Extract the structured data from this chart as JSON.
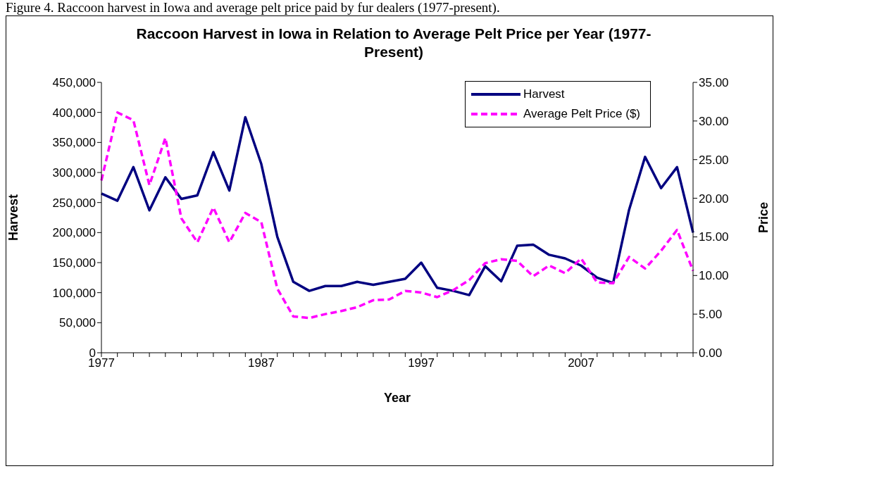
{
  "chart_data": {
    "type": "line",
    "title": "Raccoon Harvest in Iowa in Relation to Average Pelt Price per Year (1977-Present)",
    "xlabel": "Year",
    "ylabel": "Harvest",
    "y2label": "Price",
    "annotations": [
      "Figure 4. Raccoon harvest in Iowa and average pelt price paid by fur dealers (1977-present)."
    ],
    "categories": [
      "1977",
      null,
      null,
      null,
      null,
      null,
      null,
      null,
      null,
      null,
      "1987",
      null,
      null,
      null,
      null,
      null,
      null,
      null,
      null,
      null,
      "1997",
      null,
      null,
      null,
      null,
      null,
      null,
      null,
      null,
      null,
      "2007",
      null,
      null,
      null,
      null,
      null,
      null,
      null
    ],
    "series": [
      {
        "name": "Harvest",
        "color": "#000080",
        "line_style": "solid",
        "values": [
          265000,
          253000,
          309000,
          237000,
          292000,
          256000,
          262000,
          334000,
          270000,
          392000,
          314000,
          193000,
          118000,
          103000,
          111000,
          111000,
          118000,
          113000,
          118000,
          123000,
          150000,
          108000,
          103000,
          96000,
          144000,
          119000,
          178000,
          180000,
          163000,
          157000,
          145000,
          125000,
          116000,
          238000,
          326000,
          274000,
          309000,
          200000
        ]
      },
      {
        "name": "Average Pelt Price ($)",
        "color": "#ff00ff",
        "line_style": "dashed",
        "axis": "y2",
        "values": [
          22.3,
          31.1,
          30.1,
          21.7,
          27.8,
          17.4,
          14.3,
          18.8,
          14.3,
          18.1,
          16.9,
          8.3,
          4.7,
          4.5,
          5.0,
          5.4,
          5.9,
          6.8,
          6.9,
          8.0,
          7.8,
          7.2,
          8.1,
          9.4,
          11.6,
          12.1,
          11.9,
          9.9,
          11.3,
          10.3,
          12.2,
          9.1,
          9.0,
          12.4,
          10.9,
          13.2,
          15.9,
          10.6
        ]
      }
    ],
    "ylim": [
      0,
      450000
    ],
    "yticks": [
      {
        "value": 0,
        "label": "0"
      },
      {
        "value": 50000,
        "label": "50,000"
      },
      {
        "value": 100000,
        "label": "100,000"
      },
      {
        "value": 150000,
        "label": "150,000"
      },
      {
        "value": 200000,
        "label": "200,000"
      },
      {
        "value": 250000,
        "label": "250,000"
      },
      {
        "value": 300000,
        "label": "300,000"
      },
      {
        "value": 350000,
        "label": "350,000"
      },
      {
        "value": 400000,
        "label": "400,000"
      },
      {
        "value": 450000,
        "label": "450,000"
      }
    ],
    "y2lim": [
      0,
      35
    ],
    "y2ticks": [
      {
        "value": 0,
        "label": "0.00"
      },
      {
        "value": 5,
        "label": "5.00"
      },
      {
        "value": 10,
        "label": "10.00"
      },
      {
        "value": 15,
        "label": "15.00"
      },
      {
        "value": 20,
        "label": "20.00"
      },
      {
        "value": 25,
        "label": "25.00"
      },
      {
        "value": 30,
        "label": "30.00"
      },
      {
        "value": 35,
        "label": "35.00"
      }
    ],
    "grid": false,
    "legend": "top right",
    "marker": "none"
  }
}
